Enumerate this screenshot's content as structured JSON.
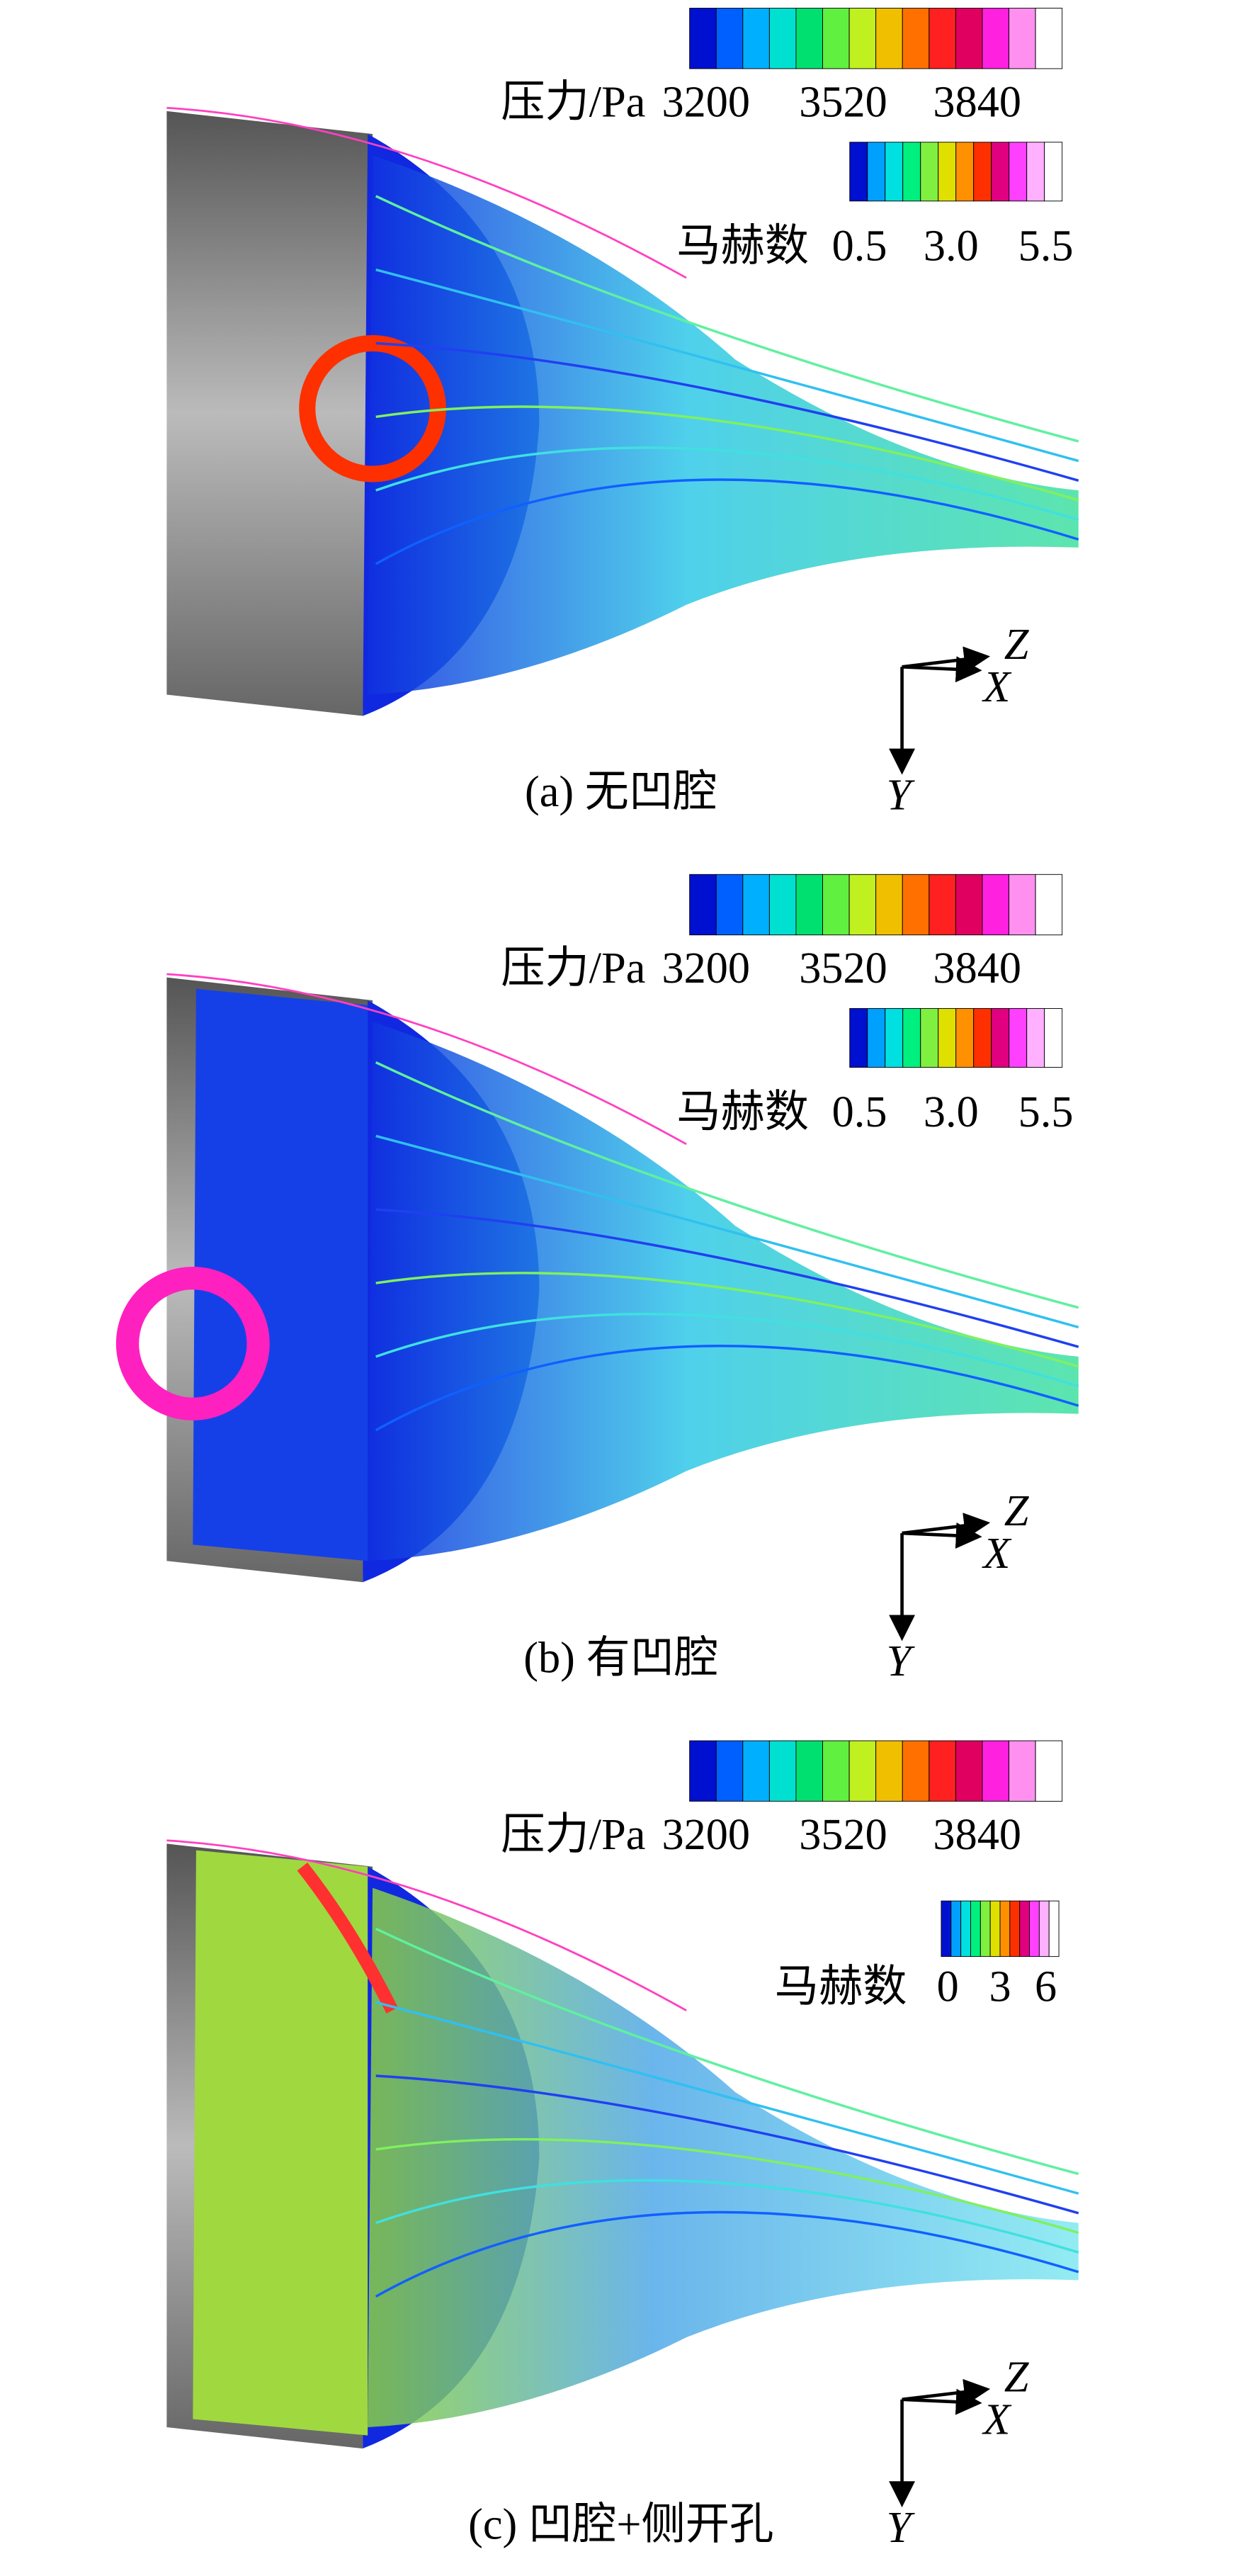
{
  "panels": [
    {
      "caption": "(a) 无凹腔",
      "pressure_legend": {
        "label": "压力/Pa",
        "ticks": [
          "3200",
          "3520",
          "3840"
        ]
      },
      "mach_legend": {
        "label": "马赫数",
        "ticks": [
          "0.5",
          "3.0",
          "5.5"
        ]
      },
      "axes": {
        "z": "Z",
        "x": "X",
        "y": "Y"
      }
    },
    {
      "caption": "(b) 有凹腔",
      "pressure_legend": {
        "label": "压力/Pa",
        "ticks": [
          "3200",
          "3520",
          "3840"
        ]
      },
      "mach_legend": {
        "label": "马赫数",
        "ticks": [
          "0.5",
          "3.0",
          "5.5"
        ]
      },
      "axes": {
        "z": "Z",
        "x": "X",
        "y": "Y"
      }
    },
    {
      "caption": "(c) 凹腔+侧开孔",
      "pressure_legend": {
        "label": "压力/Pa",
        "ticks": [
          "3200",
          "3520",
          "3840"
        ]
      },
      "mach_legend": {
        "label": "马赫数",
        "ticks": [
          "0",
          "3",
          "6"
        ]
      },
      "axes": {
        "z": "Z",
        "x": "X",
        "y": "Y"
      }
    }
  ]
}
